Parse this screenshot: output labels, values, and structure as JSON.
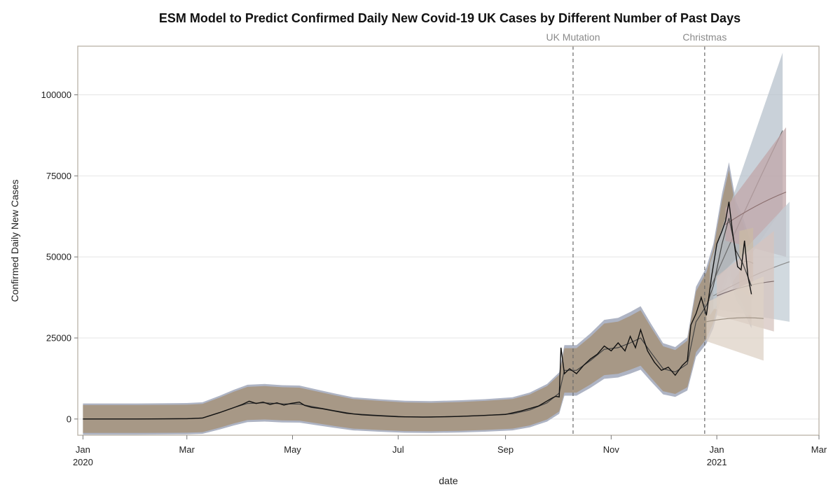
{
  "chart_data": {
    "type": "line",
    "title": "ESM Model to Predict Confirmed Daily New Covid-19 UK Cases by Different Number of Past Days",
    "xlabel": "date",
    "ylabel": "Confirmed Daily New Cases",
    "xlim": [
      "2019-12-29",
      "2021-03-01"
    ],
    "ylim": [
      -5000,
      115000
    ],
    "grid": true,
    "x_ticks": [
      {
        "date": "2020-01-01",
        "label": "Jan",
        "sublabel": "2020"
      },
      {
        "date": "2020-03-01",
        "label": "Mar",
        "sublabel": ""
      },
      {
        "date": "2020-05-01",
        "label": "May",
        "sublabel": ""
      },
      {
        "date": "2020-07-01",
        "label": "Jul",
        "sublabel": ""
      },
      {
        "date": "2020-09-01",
        "label": "Sep",
        "sublabel": ""
      },
      {
        "date": "2020-11-01",
        "label": "Nov",
        "sublabel": ""
      },
      {
        "date": "2021-01-01",
        "label": "Jan",
        "sublabel": "2021"
      },
      {
        "date": "2021-03-01",
        "label": "Mar",
        "sublabel": ""
      }
    ],
    "y_ticks": [
      {
        "value": 0,
        "label": "0"
      },
      {
        "value": 25000,
        "label": "25000"
      },
      {
        "value": 50000,
        "label": "50000"
      },
      {
        "value": 75000,
        "label": "75000"
      },
      {
        "value": 100000,
        "label": "100000"
      }
    ],
    "annotations": [
      {
        "date": "2020-10-10",
        "label": "UK Mutation"
      },
      {
        "date": "2020-12-25",
        "label": "Christmas"
      }
    ],
    "actual": {
      "color": "#111111",
      "points": [
        [
          "2020-01-01",
          0
        ],
        [
          "2020-02-01",
          0
        ],
        [
          "2020-03-01",
          100
        ],
        [
          "2020-03-10",
          300
        ],
        [
          "2020-03-20",
          2000
        ],
        [
          "2020-03-28",
          3500
        ],
        [
          "2020-04-02",
          4500
        ],
        [
          "2020-04-06",
          5500
        ],
        [
          "2020-04-10",
          4800
        ],
        [
          "2020-04-14",
          5200
        ],
        [
          "2020-04-18",
          4500
        ],
        [
          "2020-04-22",
          5000
        ],
        [
          "2020-04-26",
          4300
        ],
        [
          "2020-04-30",
          4800
        ],
        [
          "2020-05-05",
          5200
        ],
        [
          "2020-05-08",
          4200
        ],
        [
          "2020-05-12",
          3600
        ],
        [
          "2020-05-18",
          3200
        ],
        [
          "2020-05-24",
          2600
        ],
        [
          "2020-06-01",
          1800
        ],
        [
          "2020-06-10",
          1300
        ],
        [
          "2020-06-20",
          1000
        ],
        [
          "2020-07-01",
          700
        ],
        [
          "2020-07-15",
          600
        ],
        [
          "2020-08-01",
          750
        ],
        [
          "2020-08-15",
          1000
        ],
        [
          "2020-09-01",
          1400
        ],
        [
          "2020-09-10",
          2500
        ],
        [
          "2020-09-20",
          4000
        ],
        [
          "2020-09-28",
          6500
        ],
        [
          "2020-09-30",
          7000
        ],
        [
          "2020-10-02",
          6800
        ],
        [
          "2020-10-03",
          22000
        ],
        [
          "2020-10-05",
          14000
        ],
        [
          "2020-10-08",
          15500
        ],
        [
          "2020-10-12",
          14000
        ],
        [
          "2020-10-16",
          16500
        ],
        [
          "2020-10-20",
          18500
        ],
        [
          "2020-10-24",
          20000
        ],
        [
          "2020-10-28",
          22500
        ],
        [
          "2020-11-01",
          21000
        ],
        [
          "2020-11-05",
          23500
        ],
        [
          "2020-11-09",
          21000
        ],
        [
          "2020-11-12",
          25500
        ],
        [
          "2020-11-15",
          22000
        ],
        [
          "2020-11-18",
          27500
        ],
        [
          "2020-11-22",
          21000
        ],
        [
          "2020-11-26",
          17500
        ],
        [
          "2020-11-30",
          15000
        ],
        [
          "2020-12-04",
          16000
        ],
        [
          "2020-12-08",
          13500
        ],
        [
          "2020-12-12",
          16500
        ],
        [
          "2020-12-15",
          18000
        ],
        [
          "2020-12-17",
          29000
        ],
        [
          "2020-12-20",
          32500
        ],
        [
          "2020-12-23",
          37500
        ],
        [
          "2020-12-26",
          32000
        ],
        [
          "2020-12-29",
          44000
        ],
        [
          "2021-01-01",
          54000
        ],
        [
          "2021-01-04",
          58000
        ],
        [
          "2021-01-06",
          61000
        ],
        [
          "2021-01-08",
          67000
        ],
        [
          "2021-01-10",
          58000
        ],
        [
          "2021-01-13",
          47000
        ],
        [
          "2021-01-15",
          46000
        ],
        [
          "2021-01-17",
          55000
        ],
        [
          "2021-01-19",
          44000
        ],
        [
          "2021-01-21",
          38500
        ]
      ]
    },
    "fit": {
      "color": "#444444",
      "band_color": "#a79886",
      "band_outer_color": "#aeb4c4",
      "points": [
        [
          "2020-01-01",
          0
        ],
        [
          "2020-02-01",
          0
        ],
        [
          "2020-03-01",
          100
        ],
        [
          "2020-03-10",
          300
        ],
        [
          "2020-03-20",
          2000
        ],
        [
          "2020-03-28",
          3500
        ],
        [
          "2020-04-05",
          4800
        ],
        [
          "2020-04-15",
          5000
        ],
        [
          "2020-04-25",
          4700
        ],
        [
          "2020-05-05",
          4600
        ],
        [
          "2020-05-15",
          3600
        ],
        [
          "2020-05-25",
          2600
        ],
        [
          "2020-06-05",
          1600
        ],
        [
          "2020-06-20",
          1100
        ],
        [
          "2020-07-05",
          700
        ],
        [
          "2020-07-20",
          600
        ],
        [
          "2020-08-05",
          800
        ],
        [
          "2020-08-20",
          1100
        ],
        [
          "2020-09-05",
          1600
        ],
        [
          "2020-09-15",
          2800
        ],
        [
          "2020-09-25",
          5000
        ],
        [
          "2020-10-02",
          8000
        ],
        [
          "2020-10-05",
          15000
        ],
        [
          "2020-10-12",
          15000
        ],
        [
          "2020-10-20",
          18000
        ],
        [
          "2020-10-28",
          21500
        ],
        [
          "2020-11-05",
          22000
        ],
        [
          "2020-11-12",
          23500
        ],
        [
          "2020-11-18",
          25000
        ],
        [
          "2020-11-24",
          20500
        ],
        [
          "2020-12-01",
          15500
        ],
        [
          "2020-12-08",
          14500
        ],
        [
          "2020-12-15",
          17000
        ],
        [
          "2020-12-20",
          30000
        ],
        [
          "2020-12-26",
          35000
        ],
        [
          "2020-12-30",
          41000
        ],
        [
          "2021-01-04",
          54000
        ],
        [
          "2021-01-08",
          62000
        ],
        [
          "2021-01-12",
          52000
        ],
        [
          "2021-01-16",
          48000
        ],
        [
          "2021-01-21",
          41000
        ]
      ]
    },
    "forecasts": [
      {
        "color": "#b7c2cc",
        "line_color": "#6c6c6c",
        "points": [
          [
            "2020-12-28",
            40000,
            32000,
            48000
          ],
          [
            "2021-02-08",
            89000,
            65000,
            113000
          ]
        ]
      },
      {
        "color": "#c0a5a8",
        "line_color": "#8a6d6d",
        "points": [
          [
            "2021-01-06",
            60000,
            55000,
            65000
          ],
          [
            "2021-02-10",
            70000,
            50000,
            90000
          ]
        ]
      },
      {
        "color": "#c2ccd4",
        "line_color": "#8a8a8a",
        "points": [
          [
            "2020-12-30",
            38000,
            34000,
            42000
          ],
          [
            "2021-02-12",
            48500,
            30000,
            67000
          ]
        ]
      },
      {
        "color": "#cbbba6",
        "line_color": "#8a7e6e",
        "points": [
          [
            "2021-01-14",
            48000,
            40000,
            58000
          ],
          [
            "2021-01-22",
            48000,
            37000,
            59000
          ]
        ]
      },
      {
        "color": "#d5c4bf",
        "line_color": "#7a6a6a",
        "points": [
          [
            "2021-01-01",
            38000,
            32000,
            44000
          ],
          [
            "2021-02-03",
            42500,
            27000,
            58000
          ]
        ]
      },
      {
        "color": "#ddd2c5",
        "line_color": "#9a8e80",
        "points": [
          [
            "2020-12-26",
            30000,
            24000,
            36000
          ],
          [
            "2021-01-28",
            31000,
            18000,
            44000
          ]
        ]
      }
    ]
  }
}
